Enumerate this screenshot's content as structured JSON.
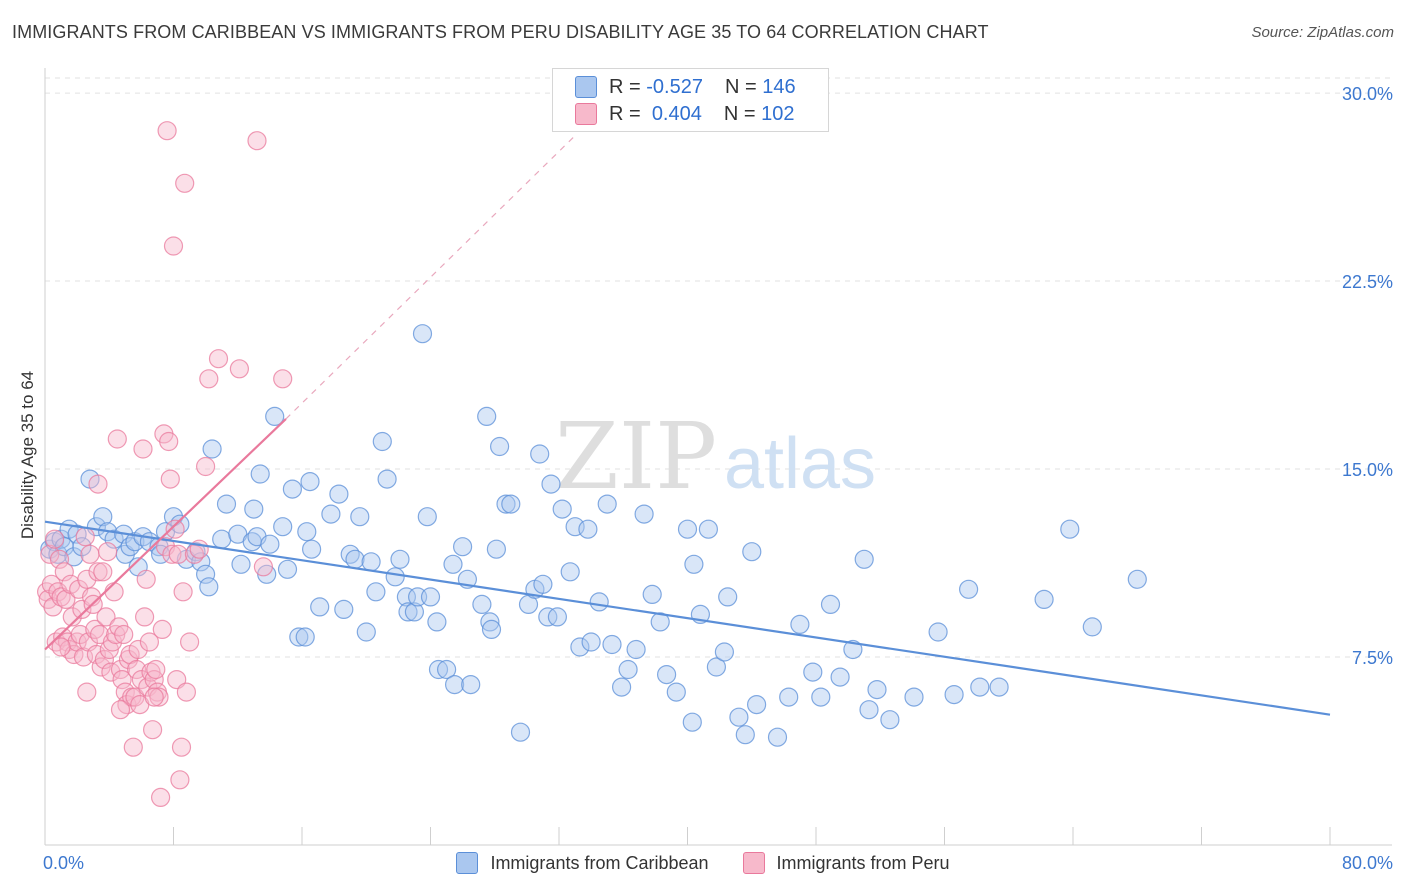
{
  "header": {
    "title": "IMMIGRANTS FROM CARIBBEAN VS IMMIGRANTS FROM PERU DISABILITY AGE 35 TO 64 CORRELATION CHART",
    "source": "Source: ZipAtlas.com"
  },
  "watermark": {
    "zip": "ZIP",
    "atlas": "atlas"
  },
  "legend": {
    "r_label": "R =",
    "n_label": "N =",
    "rows": [
      {
        "r": "-0.527",
        "n": "146",
        "fill": "#aac7ef",
        "stroke": "#5b8fd8"
      },
      {
        "r": "0.404",
        "n": "102",
        "fill": "#f7b9cb",
        "stroke": "#e9799c"
      }
    ]
  },
  "chart_data": {
    "type": "scatter",
    "title": "IMMIGRANTS FROM CARIBBEAN VS IMMIGRANTS FROM PERU DISABILITY AGE 35 TO 64 CORRELATION CHART",
    "xlabel": "",
    "ylabel": "Disability Age 35 to 64",
    "xlim": [
      0,
      80
    ],
    "ylim": [
      0,
      31
    ],
    "x_tick_labels": [
      "0.0%",
      "80.0%"
    ],
    "y_ticks": [
      7.5,
      15.0,
      22.5,
      30.0
    ],
    "y_tick_labels": [
      "7.5%",
      "15.0%",
      "22.5%",
      "30.0%"
    ],
    "grid": true,
    "legend_position": "top-center",
    "series": [
      {
        "name": "Immigrants from Caribbean",
        "color": "#5b8fd8",
        "fill": "#aac7ef",
        "trend": {
          "x": [
            0,
            80
          ],
          "y": [
            12.9,
            5.2
          ]
        },
        "points": [
          [
            0.3,
            11.8
          ],
          [
            0.6,
            12.1
          ],
          [
            0.8,
            11.6
          ],
          [
            1.0,
            12.2
          ],
          [
            1.2,
            11.9
          ],
          [
            1.5,
            12.6
          ],
          [
            1.8,
            11.5
          ],
          [
            2.0,
            12.4
          ],
          [
            2.3,
            11.9
          ],
          [
            2.8,
            14.6
          ],
          [
            3.2,
            12.7
          ],
          [
            3.6,
            13.1
          ],
          [
            3.9,
            12.5
          ],
          [
            4.3,
            12.2
          ],
          [
            4.9,
            12.4
          ],
          [
            5.0,
            11.6
          ],
          [
            5.3,
            11.9
          ],
          [
            5.6,
            12.1
          ],
          [
            5.8,
            11.1
          ],
          [
            6.1,
            12.3
          ],
          [
            6.5,
            12.1
          ],
          [
            7.1,
            11.9
          ],
          [
            7.2,
            11.6
          ],
          [
            7.5,
            12.5
          ],
          [
            8.0,
            13.1
          ],
          [
            8.4,
            12.8
          ],
          [
            8.8,
            11.4
          ],
          [
            9.4,
            11.7
          ],
          [
            9.7,
            11.3
          ],
          [
            10.0,
            10.8
          ],
          [
            10.2,
            10.3
          ],
          [
            10.4,
            15.8
          ],
          [
            11.0,
            12.2
          ],
          [
            11.3,
            13.6
          ],
          [
            12.0,
            12.4
          ],
          [
            12.2,
            11.2
          ],
          [
            12.9,
            12.1
          ],
          [
            13.0,
            13.4
          ],
          [
            13.2,
            12.3
          ],
          [
            13.4,
            14.8
          ],
          [
            13.8,
            10.8
          ],
          [
            14.0,
            12.0
          ],
          [
            14.3,
            17.1
          ],
          [
            14.8,
            12.7
          ],
          [
            15.1,
            11.0
          ],
          [
            15.4,
            14.2
          ],
          [
            15.8,
            8.3
          ],
          [
            16.2,
            8.3
          ],
          [
            16.3,
            12.5
          ],
          [
            16.5,
            14.5
          ],
          [
            16.6,
            11.8
          ],
          [
            17.1,
            9.5
          ],
          [
            17.8,
            13.2
          ],
          [
            18.3,
            14.0
          ],
          [
            18.6,
            9.4
          ],
          [
            19.0,
            11.6
          ],
          [
            19.3,
            11.4
          ],
          [
            19.6,
            13.1
          ],
          [
            20.0,
            8.5
          ],
          [
            20.3,
            11.3
          ],
          [
            20.6,
            10.1
          ],
          [
            21.0,
            16.1
          ],
          [
            21.3,
            14.6
          ],
          [
            21.8,
            10.7
          ],
          [
            22.1,
            11.4
          ],
          [
            22.5,
            9.9
          ],
          [
            22.6,
            9.3
          ],
          [
            23.0,
            9.3
          ],
          [
            23.2,
            9.9
          ],
          [
            23.5,
            20.4
          ],
          [
            23.8,
            13.1
          ],
          [
            24.0,
            9.9
          ],
          [
            24.4,
            8.9
          ],
          [
            24.5,
            7.0
          ],
          [
            25.0,
            7.0
          ],
          [
            25.4,
            11.2
          ],
          [
            25.5,
            6.4
          ],
          [
            26.0,
            11.9
          ],
          [
            26.3,
            10.6
          ],
          [
            26.5,
            6.4
          ],
          [
            27.2,
            9.6
          ],
          [
            27.5,
            17.1
          ],
          [
            27.7,
            8.9
          ],
          [
            27.8,
            8.6
          ],
          [
            28.1,
            11.8
          ],
          [
            28.3,
            15.9
          ],
          [
            28.7,
            13.6
          ],
          [
            29.0,
            13.6
          ],
          [
            29.6,
            4.5
          ],
          [
            30.1,
            9.6
          ],
          [
            30.5,
            10.2
          ],
          [
            30.8,
            15.6
          ],
          [
            31.0,
            10.4
          ],
          [
            31.3,
            9.1
          ],
          [
            31.5,
            14.4
          ],
          [
            31.9,
            9.1
          ],
          [
            32.2,
            13.4
          ],
          [
            32.7,
            10.9
          ],
          [
            33.0,
            12.7
          ],
          [
            33.3,
            7.9
          ],
          [
            33.8,
            12.6
          ],
          [
            34.0,
            8.1
          ],
          [
            34.5,
            9.7
          ],
          [
            35.0,
            13.6
          ],
          [
            35.3,
            8.0
          ],
          [
            35.9,
            6.3
          ],
          [
            36.3,
            7.0
          ],
          [
            36.8,
            7.8
          ],
          [
            37.3,
            13.2
          ],
          [
            37.8,
            10.0
          ],
          [
            38.3,
            8.9
          ],
          [
            38.7,
            6.8
          ],
          [
            39.3,
            6.1
          ],
          [
            40.0,
            12.6
          ],
          [
            40.3,
            4.9
          ],
          [
            40.4,
            11.2
          ],
          [
            40.8,
            9.2
          ],
          [
            41.3,
            12.6
          ],
          [
            41.8,
            7.1
          ],
          [
            42.3,
            7.7
          ],
          [
            42.5,
            9.9
          ],
          [
            43.2,
            5.1
          ],
          [
            43.6,
            4.4
          ],
          [
            44.0,
            11.7
          ],
          [
            44.3,
            5.6
          ],
          [
            45.6,
            4.3
          ],
          [
            46.3,
            5.9
          ],
          [
            47.0,
            8.8
          ],
          [
            47.8,
            6.9
          ],
          [
            48.3,
            5.9
          ],
          [
            48.9,
            9.6
          ],
          [
            49.5,
            6.7
          ],
          [
            50.3,
            7.8
          ],
          [
            51.0,
            11.4
          ],
          [
            51.3,
            5.4
          ],
          [
            51.8,
            6.2
          ],
          [
            52.6,
            5.0
          ],
          [
            54.1,
            5.9
          ],
          [
            55.6,
            8.5
          ],
          [
            56.6,
            6.0
          ],
          [
            57.5,
            10.2
          ],
          [
            58.2,
            6.3
          ],
          [
            59.4,
            6.3
          ],
          [
            62.2,
            9.8
          ],
          [
            63.8,
            12.6
          ],
          [
            65.2,
            8.7
          ],
          [
            68.0,
            10.6
          ]
        ]
      },
      {
        "name": "Immigrants from Peru",
        "color": "#e9799c",
        "fill": "#f7b9cb",
        "trend": {
          "x": [
            0,
            15
          ],
          "y": [
            7.8,
            17.0
          ],
          "dash_to": {
            "x": 33,
            "y": 28.3
          }
        },
        "points": [
          [
            0.1,
            10.1
          ],
          [
            0.2,
            9.8
          ],
          [
            0.3,
            11.6
          ],
          [
            0.4,
            10.4
          ],
          [
            0.5,
            9.5
          ],
          [
            0.6,
            12.2
          ],
          [
            0.7,
            8.1
          ],
          [
            0.8,
            10.1
          ],
          [
            0.9,
            11.4
          ],
          [
            1.0,
            9.9
          ],
          [
            1.1,
            8.3
          ],
          [
            1.2,
            10.9
          ],
          [
            1.3,
            9.8
          ],
          [
            1.4,
            8.1
          ],
          [
            1.5,
            7.8
          ],
          [
            1.6,
            10.4
          ],
          [
            1.7,
            9.1
          ],
          [
            1.8,
            7.6
          ],
          [
            2.0,
            8.1
          ],
          [
            2.1,
            10.2
          ],
          [
            2.2,
            8.4
          ],
          [
            2.3,
            9.4
          ],
          [
            2.4,
            7.5
          ],
          [
            2.5,
            12.3
          ],
          [
            2.6,
            10.6
          ],
          [
            2.7,
            8.1
          ],
          [
            2.8,
            11.6
          ],
          [
            2.9,
            9.9
          ],
          [
            3.0,
            9.6
          ],
          [
            3.1,
            8.6
          ],
          [
            3.2,
            7.6
          ],
          [
            3.3,
            10.9
          ],
          [
            3.4,
            8.4
          ],
          [
            3.5,
            7.1
          ],
          [
            3.6,
            10.9
          ],
          [
            3.7,
            7.4
          ],
          [
            3.8,
            9.1
          ],
          [
            3.9,
            11.7
          ],
          [
            4.0,
            7.8
          ],
          [
            4.1,
            6.9
          ],
          [
            4.2,
            8.1
          ],
          [
            4.3,
            10.1
          ],
          [
            4.4,
            8.4
          ],
          [
            4.5,
            16.2
          ],
          [
            4.6,
            8.7
          ],
          [
            4.7,
            7.0
          ],
          [
            4.8,
            6.6
          ],
          [
            4.9,
            8.4
          ],
          [
            5.0,
            6.1
          ],
          [
            5.1,
            5.6
          ],
          [
            5.2,
            7.4
          ],
          [
            5.3,
            7.6
          ],
          [
            5.4,
            5.9
          ],
          [
            5.5,
            3.9
          ],
          [
            5.6,
            5.9
          ],
          [
            5.7,
            7.0
          ],
          [
            5.8,
            7.8
          ],
          [
            5.9,
            5.6
          ],
          [
            6.0,
            6.6
          ],
          [
            6.1,
            15.8
          ],
          [
            6.2,
            9.1
          ],
          [
            6.3,
            10.6
          ],
          [
            6.4,
            6.3
          ],
          [
            6.5,
            8.1
          ],
          [
            6.6,
            6.9
          ],
          [
            6.7,
            4.6
          ],
          [
            6.8,
            6.6
          ],
          [
            6.9,
            7.0
          ],
          [
            7.0,
            6.1
          ],
          [
            7.1,
            5.9
          ],
          [
            7.2,
            1.9
          ],
          [
            7.3,
            8.6
          ],
          [
            7.4,
            16.4
          ],
          [
            7.5,
            11.9
          ],
          [
            7.6,
            28.5
          ],
          [
            7.7,
            16.1
          ],
          [
            7.8,
            14.6
          ],
          [
            7.9,
            11.6
          ],
          [
            8.0,
            23.9
          ],
          [
            8.1,
            12.6
          ],
          [
            8.2,
            6.6
          ],
          [
            8.3,
            11.6
          ],
          [
            8.4,
            2.6
          ],
          [
            8.5,
            3.9
          ],
          [
            8.6,
            10.1
          ],
          [
            8.7,
            26.4
          ],
          [
            8.8,
            6.1
          ],
          [
            9.0,
            8.1
          ],
          [
            9.3,
            11.6
          ],
          [
            10.0,
            15.1
          ],
          [
            10.2,
            18.6
          ],
          [
            10.8,
            19.4
          ],
          [
            12.1,
            19.0
          ],
          [
            13.2,
            28.1
          ],
          [
            13.6,
            11.1
          ],
          [
            14.8,
            18.6
          ],
          [
            1.0,
            7.9
          ],
          [
            2.6,
            6.1
          ],
          [
            4.7,
            5.4
          ],
          [
            6.8,
            5.9
          ],
          [
            3.3,
            14.4
          ],
          [
            9.6,
            11.8
          ]
        ]
      }
    ]
  },
  "bottom_legend": {
    "items": [
      {
        "label": "Immigrants from Caribbean",
        "fill": "#aac7ef",
        "stroke": "#5b8fd8"
      },
      {
        "label": "Immigrants from Peru",
        "fill": "#f7b9cb",
        "stroke": "#e9799c"
      }
    ]
  }
}
